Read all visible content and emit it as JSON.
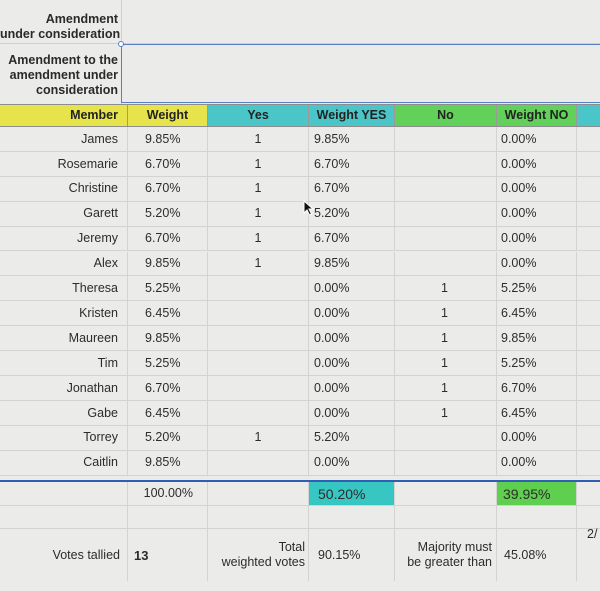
{
  "top_labels": {
    "amendment": "Amendment under consideration",
    "amendment_l1": "Amendment",
    "amendment_l2": "under consideration",
    "sub_l1": "Amendment to the",
    "sub_l2": "amendment under",
    "sub_l3": "consideration"
  },
  "header": {
    "member": "Member",
    "weight": "Weight",
    "yes": "Yes",
    "weight_yes": "Weight YES",
    "no": "No",
    "weight_no": "Weight NO"
  },
  "colors": {
    "member_header": "#e6e44a",
    "weight_header": "#e6e44a",
    "yes_header": "#4ac6c9",
    "weight_yes_header": "#4ac6c9",
    "no_header": "#62d15a",
    "weight_no_header": "#62d15a",
    "weight_yes_total": "#37c6c2",
    "weight_no_total": "#5ecf4f",
    "selection_border": "#5a7fc0",
    "separator_line": "#2f5fb4"
  },
  "rows": [
    {
      "member": "James",
      "weight": "9.85%",
      "yes": "1",
      "weight_yes": "9.85%",
      "no": "",
      "weight_no": "0.00%"
    },
    {
      "member": "Rosemarie",
      "weight": "6.70%",
      "yes": "1",
      "weight_yes": "6.70%",
      "no": "",
      "weight_no": "0.00%"
    },
    {
      "member": "Christine",
      "weight": "6.70%",
      "yes": "1",
      "weight_yes": "6.70%",
      "no": "",
      "weight_no": "0.00%"
    },
    {
      "member": "Garett",
      "weight": "5.20%",
      "yes": "1",
      "weight_yes": "5.20%",
      "no": "",
      "weight_no": "0.00%"
    },
    {
      "member": "Jeremy",
      "weight": "6.70%",
      "yes": "1",
      "weight_yes": "6.70%",
      "no": "",
      "weight_no": "0.00%"
    },
    {
      "member": "Alex",
      "weight": "9.85%",
      "yes": "1",
      "weight_yes": "9.85%",
      "no": "",
      "weight_no": "0.00%"
    },
    {
      "member": "Theresa",
      "weight": "5.25%",
      "yes": "",
      "weight_yes": "0.00%",
      "no": "1",
      "weight_no": "5.25%"
    },
    {
      "member": "Kristen",
      "weight": "6.45%",
      "yes": "",
      "weight_yes": "0.00%",
      "no": "1",
      "weight_no": "6.45%"
    },
    {
      "member": "Maureen",
      "weight": "9.85%",
      "yes": "",
      "weight_yes": "0.00%",
      "no": "1",
      "weight_no": "9.85%"
    },
    {
      "member": "Tim",
      "weight": "5.25%",
      "yes": "",
      "weight_yes": "0.00%",
      "no": "1",
      "weight_no": "5.25%"
    },
    {
      "member": "Jonathan",
      "weight": "6.70%",
      "yes": "",
      "weight_yes": "0.00%",
      "no": "1",
      "weight_no": "6.70%"
    },
    {
      "member": "Gabe",
      "weight": "6.45%",
      "yes": "",
      "weight_yes": "0.00%",
      "no": "1",
      "weight_no": "6.45%"
    },
    {
      "member": "Torrey",
      "weight": "5.20%",
      "yes": "1",
      "weight_yes": "5.20%",
      "no": "",
      "weight_no": "0.00%"
    },
    {
      "member": "Caitlin",
      "weight": "9.85%",
      "yes": "",
      "weight_yes": "0.00%",
      "no": "",
      "weight_no": "0.00%"
    }
  ],
  "totals": {
    "weight": "100.00%",
    "weight_yes": "50.20%",
    "weight_no": "39.95%"
  },
  "summary": {
    "votes_tallied_label": "Votes tallied",
    "votes_tallied_value": "13",
    "total_weighted_l1": "Total",
    "total_weighted_l2": "weighted votes",
    "total_weighted_value": "90.15%",
    "majority_l1": "Majority must",
    "majority_l2": "be greater than",
    "majority_value": "45.08%",
    "cut_text": "2/"
  }
}
